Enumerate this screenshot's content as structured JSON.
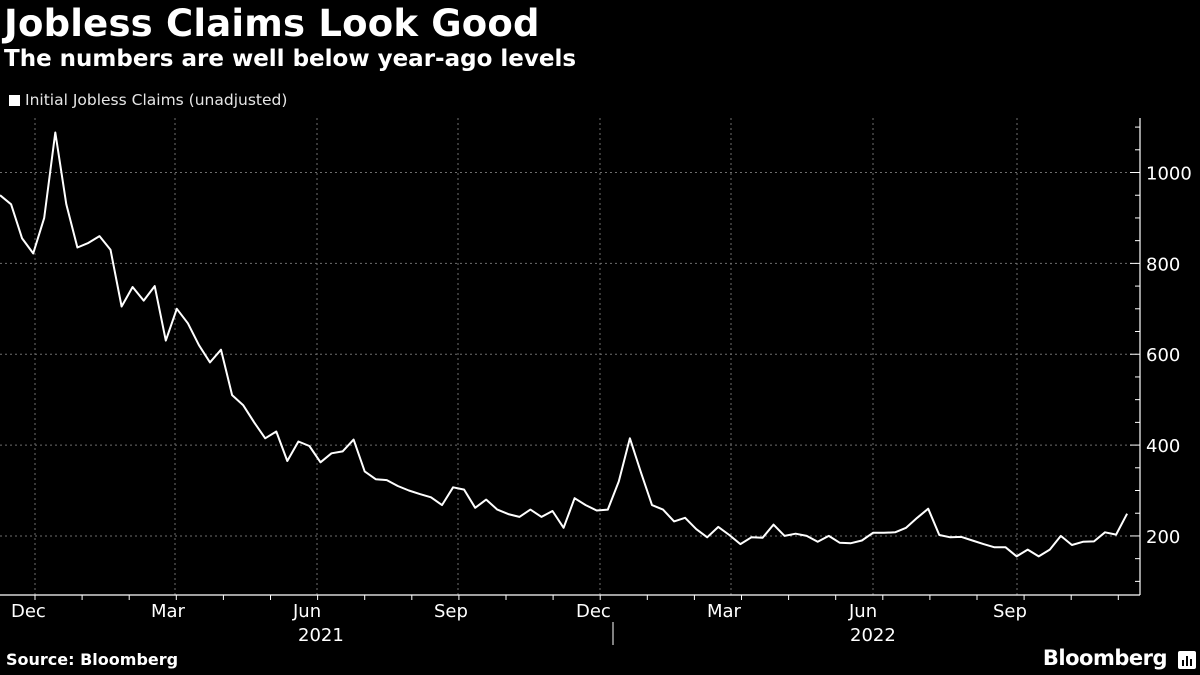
{
  "title": "Jobless Claims Look Good",
  "subtitle": "The numbers are well below year-ago levels",
  "source": "Source: Bloomberg",
  "brand": "Bloomberg",
  "colors": {
    "background": "#000000",
    "line": "#ffffff",
    "grid": "#6e6e6e"
  },
  "chart_data": {
    "type": "line",
    "title": "Jobless Claims Look Good",
    "subtitle": "The numbers are well below year-ago levels",
    "xlabel": "",
    "ylabel": "",
    "y_axis_side": "right",
    "ylim": [
      70,
      1120
    ],
    "yticks": [
      200,
      400,
      600,
      800,
      1000
    ],
    "grid": true,
    "legend_position": "top-left",
    "x_tick_labels": [
      "Dec",
      "Mar",
      "Jun",
      "Sep",
      "Dec",
      "Mar",
      "Jun",
      "Sep"
    ],
    "year_labels": [
      "2021",
      "2022"
    ],
    "series": [
      {
        "name": "Initial Jobless Claims (unadjusted)",
        "values": [
          950,
          930,
          855,
          822,
          900,
          1088,
          930,
          835,
          845,
          860,
          830,
          705,
          748,
          718,
          750,
          630,
          700,
          668,
          620,
          582,
          610,
          510,
          488,
          450,
          415,
          430,
          365,
          408,
          398,
          362,
          382,
          386,
          412,
          342,
          325,
          323,
          310,
          300,
          292,
          285,
          268,
          307,
          302,
          262,
          280,
          258,
          248,
          242,
          258,
          242,
          255,
          218,
          283,
          268,
          256,
          258,
          320,
          415,
          340,
          268,
          258,
          232,
          240,
          215,
          197,
          220,
          202,
          182,
          197,
          196,
          225,
          200,
          205,
          200,
          187,
          200,
          185,
          184,
          190,
          207,
          207,
          208,
          218,
          240,
          260,
          202,
          197,
          198,
          190,
          182,
          175,
          175,
          155,
          170,
          155,
          170,
          200,
          180,
          187,
          188,
          208,
          203,
          249
        ]
      }
    ]
  }
}
